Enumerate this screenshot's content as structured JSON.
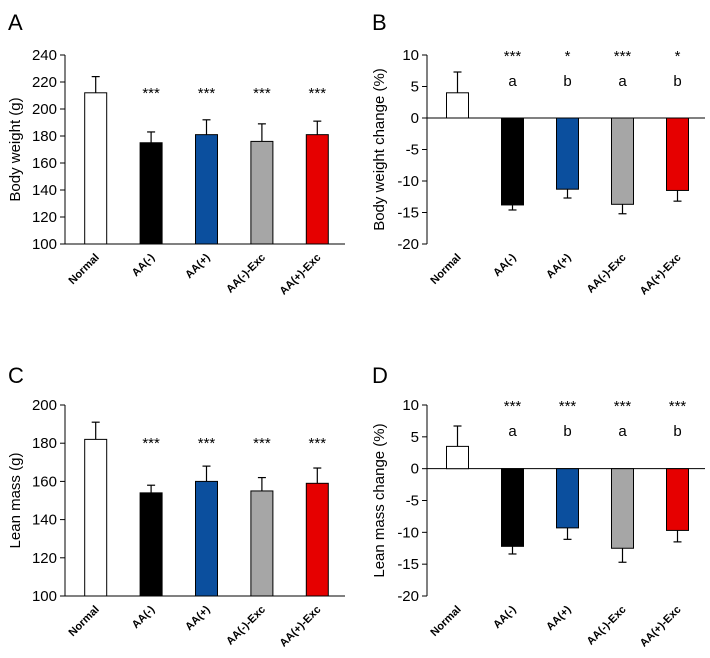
{
  "chart_data": [
    {
      "panel": "A",
      "type": "bar",
      "categories": [
        "Normal",
        "AA(-)",
        "AA(+)",
        "AA(-)-Exc",
        "AA(+)-Exc"
      ],
      "values": [
        212,
        175,
        181,
        176,
        181
      ],
      "errors": [
        12,
        8,
        11,
        13,
        10
      ],
      "colors": [
        "#ffffff",
        "#000000",
        "#0b4f9e",
        "#a6a6a6",
        "#e60000"
      ],
      "ylabel": "Body weight (g)",
      "ylim": [
        100,
        240
      ],
      "yticks": [
        "100",
        "120",
        "140",
        "160",
        "180",
        "200",
        "220",
        "240"
      ],
      "annotations": [
        [],
        [
          "***"
        ],
        [
          "***"
        ],
        [
          "***"
        ],
        [
          "***"
        ]
      ]
    },
    {
      "panel": "B",
      "type": "bar",
      "categories": [
        "Normal",
        "AA(-)",
        "AA(+)",
        "AA(-)-Exc",
        "AA(+)-Exc"
      ],
      "values": [
        4.0,
        -13.8,
        -11.3,
        -13.7,
        -11.5
      ],
      "errors": [
        3.3,
        0.8,
        1.4,
        1.5,
        1.7
      ],
      "colors": [
        "#ffffff",
        "#000000",
        "#0b4f9e",
        "#a6a6a6",
        "#e60000"
      ],
      "ylabel": "Body weight change (%)",
      "ylim": [
        -20,
        10
      ],
      "yticks": [
        "-20",
        "-15",
        "-10",
        "-5",
        "0",
        "5",
        "10"
      ],
      "annotations": [
        [],
        [
          "***",
          "a"
        ],
        [
          "*",
          "b"
        ],
        [
          "***",
          "a"
        ],
        [
          "*",
          "b"
        ]
      ]
    },
    {
      "panel": "C",
      "type": "bar",
      "categories": [
        "Normal",
        "AA(-)",
        "AA(+)",
        "AA(-)-Exc",
        "AA(+)-Exc"
      ],
      "values": [
        182,
        154,
        160,
        155,
        159
      ],
      "errors": [
        9,
        4,
        8,
        7,
        8
      ],
      "colors": [
        "#ffffff",
        "#000000",
        "#0b4f9e",
        "#a6a6a6",
        "#e60000"
      ],
      "ylabel": "Lean mass (g)",
      "ylim": [
        100,
        200
      ],
      "yticks": [
        "100",
        "120",
        "140",
        "160",
        "180",
        "200"
      ],
      "annotations": [
        [],
        [
          "***"
        ],
        [
          "***"
        ],
        [
          "***"
        ],
        [
          "***"
        ]
      ]
    },
    {
      "panel": "D",
      "type": "bar",
      "categories": [
        "Normal",
        "AA(-)",
        "AA(+)",
        "AA(-)-Exc",
        "AA(+)-Exc"
      ],
      "values": [
        3.5,
        -12.2,
        -9.3,
        -12.5,
        -9.7
      ],
      "errors": [
        3.2,
        1.2,
        1.8,
        2.2,
        1.8
      ],
      "colors": [
        "#ffffff",
        "#000000",
        "#0b4f9e",
        "#a6a6a6",
        "#e60000"
      ],
      "ylabel": "Lean mass change (%)",
      "ylim": [
        -20,
        10
      ],
      "yticks": [
        "-20",
        "-15",
        "-10",
        "-5",
        "0",
        "5",
        "10"
      ],
      "annotations": [
        [],
        [
          "***",
          "a"
        ],
        [
          "***",
          "b"
        ],
        [
          "***",
          "a"
        ],
        [
          "***",
          "b"
        ]
      ]
    }
  ]
}
